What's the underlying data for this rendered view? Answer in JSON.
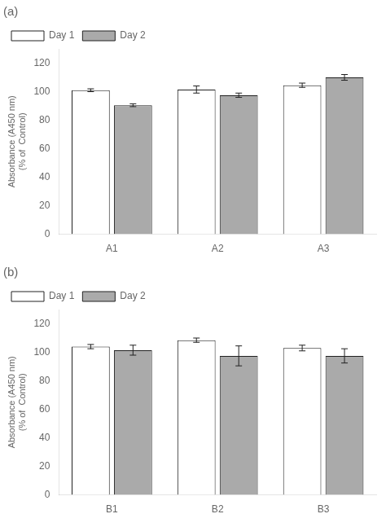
{
  "chart_data": [
    {
      "type": "bar",
      "title": "(a)",
      "ylabel": "Absorbance (A450 nm)\n(% of  Control)",
      "categories": [
        "A1",
        "A2",
        "A3"
      ],
      "series": [
        {
          "name": "Day 1",
          "color": "#ffffff",
          "values": [
            101,
            101.5,
            104.5
          ],
          "errors": [
            1.0,
            2.5,
            1.5
          ]
        },
        {
          "name": "Day 2",
          "color": "#aaaaaa",
          "values": [
            90.5,
            97.5,
            110
          ],
          "errors": [
            1.0,
            1.5,
            2.0
          ]
        }
      ],
      "ylim": [
        0,
        130
      ],
      "yticks": [
        0,
        20,
        40,
        60,
        80,
        100,
        120
      ],
      "grid": false,
      "legend": "upper left"
    },
    {
      "type": "bar",
      "title": "(b)",
      "ylabel": "Absorbance (A450 nm)\n(% of  Control)",
      "categories": [
        "B1",
        "B2",
        "B3"
      ],
      "series": [
        {
          "name": "Day 1",
          "color": "#ffffff",
          "values": [
            104,
            108.5,
            103
          ],
          "errors": [
            1.5,
            1.5,
            2.0
          ]
        },
        {
          "name": "Day 2",
          "color": "#aaaaaa",
          "values": [
            101.5,
            97.5,
            97.5
          ],
          "errors": [
            3.5,
            7.0,
            5.0
          ]
        }
      ],
      "ylim": [
        0,
        130
      ],
      "yticks": [
        0,
        20,
        40,
        60,
        80,
        100,
        120
      ],
      "grid": false,
      "legend": "upper left"
    }
  ]
}
